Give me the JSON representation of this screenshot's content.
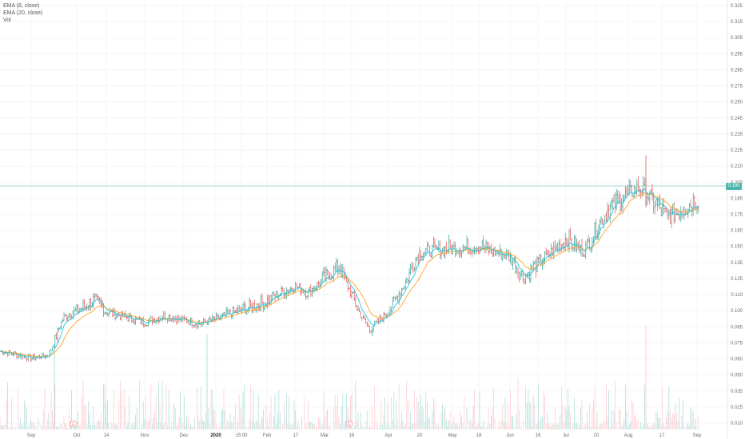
{
  "legend": {
    "ema8": "EMA (8, close)",
    "ema20": "EMA (20, close)",
    "vol": "Vol"
  },
  "last_price": "0.190",
  "colors": {
    "up": "#26a69a",
    "down": "#ef5350",
    "neutral": "#888888",
    "ema8": "#26c6da",
    "ema20": "#ffa726",
    "grid": "#f1f3f6",
    "volume_up": "#b2dfdb",
    "volume_down": "#ffcdd2",
    "price_line": "#4db6ac"
  },
  "event_markers": [
    "E",
    "E"
  ],
  "chart_data": {
    "type": "candlestick",
    "y_axis": {
      "position": "right",
      "ticks": [
        "0.325",
        "0.315",
        "0.305",
        "0.295",
        "0.285",
        "0.275",
        "0.260",
        "0.245",
        "0.235",
        "0.225",
        "0.210",
        "0.200",
        "0.185",
        "0.175",
        "0.160",
        "0.150",
        "0.135",
        "0.125",
        "0.110",
        "0.100",
        "0.085",
        "0.075",
        "0.060",
        "0.050",
        "0.035",
        "0.025",
        "0.010"
      ],
      "range": [
        0.005,
        0.325
      ]
    },
    "x_axis": {
      "ticks": [
        "Sep",
        "Oct",
        "14",
        "Nov",
        "Dec",
        "2020",
        "15:00",
        "Feb",
        "17",
        "Mar",
        "16",
        "Apr",
        "20",
        "May",
        "18",
        "Jun",
        "16",
        "Jul",
        "20",
        "Aug",
        "17",
        "Sep"
      ],
      "bold": [
        "2020"
      ]
    },
    "price_path": [
      [
        "Aug 2019",
        0.067
      ],
      [
        "Sep",
        0.061
      ],
      [
        "Sep mid",
        0.063
      ],
      [
        "Oct",
        0.094
      ],
      [
        "Oct 5",
        0.107
      ],
      [
        "Oct 14",
        0.099
      ],
      [
        "Nov",
        0.089
      ],
      [
        "Nov mid",
        0.095
      ],
      [
        "Dec",
        0.091
      ],
      [
        "Dec mid",
        0.088
      ],
      [
        "2020",
        0.092
      ],
      [
        "Jan mid",
        0.098
      ],
      [
        "Feb",
        0.106
      ],
      [
        "Feb 17",
        0.118
      ],
      [
        "Feb end",
        0.112
      ],
      [
        "Mar",
        0.125
      ],
      [
        "Mar 10",
        0.133
      ],
      [
        "Mar 16",
        0.11
      ],
      [
        "Apr",
        0.083
      ],
      [
        "Apr 10",
        0.093
      ],
      [
        "Apr 20",
        0.112
      ],
      [
        "May",
        0.145
      ],
      [
        "May 18",
        0.15
      ],
      [
        "Jun",
        0.14
      ],
      [
        "Jun 16",
        0.125
      ],
      [
        "Jul",
        0.155
      ],
      [
        "Jul 10",
        0.145
      ],
      [
        "Jul 20",
        0.178
      ],
      [
        "Aug",
        0.195
      ],
      [
        "Aug 5",
        0.185
      ],
      [
        "Aug 17",
        0.172
      ],
      [
        "Sep",
        0.185
      ]
    ],
    "volume_spikes": [
      {
        "x": "Dec",
        "v": 0.76
      },
      {
        "x": "2020",
        "v": 0.92
      },
      {
        "x": "Aug 17",
        "v": 1.0
      }
    ],
    "indicators": [
      "EMA (8, close)",
      "EMA (20, close)",
      "Vol"
    ],
    "grid": true
  }
}
